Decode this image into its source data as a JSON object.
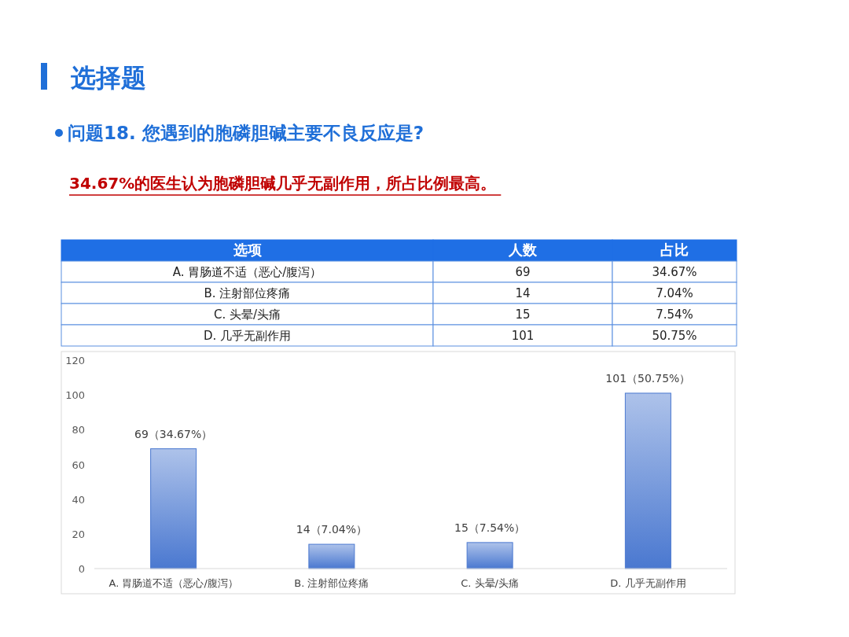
{
  "chart_data": [
    {
      "type": "other",
      "title": "选择题",
      "subtitle": "问题18. 您遇到的胞磷胆碱主要不良反应是?",
      "annotations": [
        "34.67%的医生认为胞磷胆碱几乎无副作用，所占比例最高。",
        "选项",
        "人数",
        "占比",
        "A. 胃肠道不适（恶心/腹泻）",
        "69",
        "34.67%",
        "B. 注射部位疼痛",
        "14",
        "7.04%",
        "C. 头晕/头痛",
        "15",
        "7.54%",
        "D. 几乎无副作用",
        "101",
        "50.75%"
      ]
    },
    {
      "type": "bar",
      "categories": [
        "A. 胃肠道不适（恶心/腹泻）",
        "B. 注射部位疼痛",
        "C. 头晕/头痛",
        "D. 几乎无副作用"
      ],
      "values": [
        69,
        14,
        15,
        101
      ],
      "color": "#4a78d0",
      "ylim": [
        0,
        120
      ],
      "yticks": [
        0,
        20,
        40,
        60,
        80,
        100,
        120
      ],
      "grid": false,
      "value_labels": [
        "69（34.67%）",
        "14（7.04%）",
        "15（7.54%）",
        "101（50.75%）"
      ]
    }
  ]
}
